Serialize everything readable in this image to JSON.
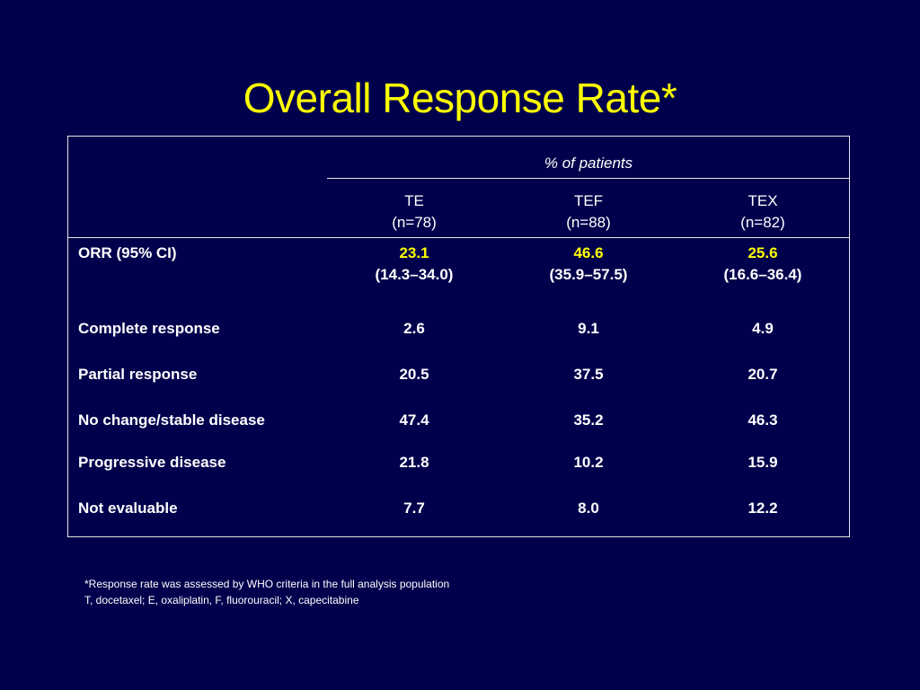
{
  "title": "Overall Response Rate*",
  "table": {
    "group_header": "% of patients",
    "columns": [
      {
        "name": "TE",
        "n": "(n=78)"
      },
      {
        "name": "TEF",
        "n": "(n=88)"
      },
      {
        "name": "TEX",
        "n": "(n=82)"
      }
    ],
    "orr": {
      "label": "ORR (95% CI)",
      "values": [
        "23.1",
        "46.6",
        "25.6"
      ],
      "cis": [
        "(14.3–34.0)",
        "(35.9–57.5)",
        "(16.6–36.4)"
      ]
    },
    "rows": [
      {
        "label": "Complete response",
        "values": [
          "2.6",
          "9.1",
          "4.9"
        ]
      },
      {
        "label": "Partial response",
        "values": [
          "20.5",
          "37.5",
          "20.7"
        ]
      },
      {
        "label": "No change/stable disease",
        "values": [
          "47.4",
          "35.2",
          "46.3"
        ]
      },
      {
        "label": "Progressive disease",
        "values": [
          "21.8",
          "10.2",
          "15.9"
        ]
      },
      {
        "label": "Not evaluable",
        "values": [
          "7.7",
          "8.0",
          "12.2"
        ]
      }
    ]
  },
  "footnotes": [
    "*Response rate was assessed by WHO criteria in the full analysis population",
    "T, docetaxel; E, oxaliplatin, F, fluorouracil; X, capecitabine"
  ],
  "colors": {
    "background": "#00004c",
    "title": "#ffff00",
    "highlight": "#ffff00",
    "text": "#ffffff"
  }
}
